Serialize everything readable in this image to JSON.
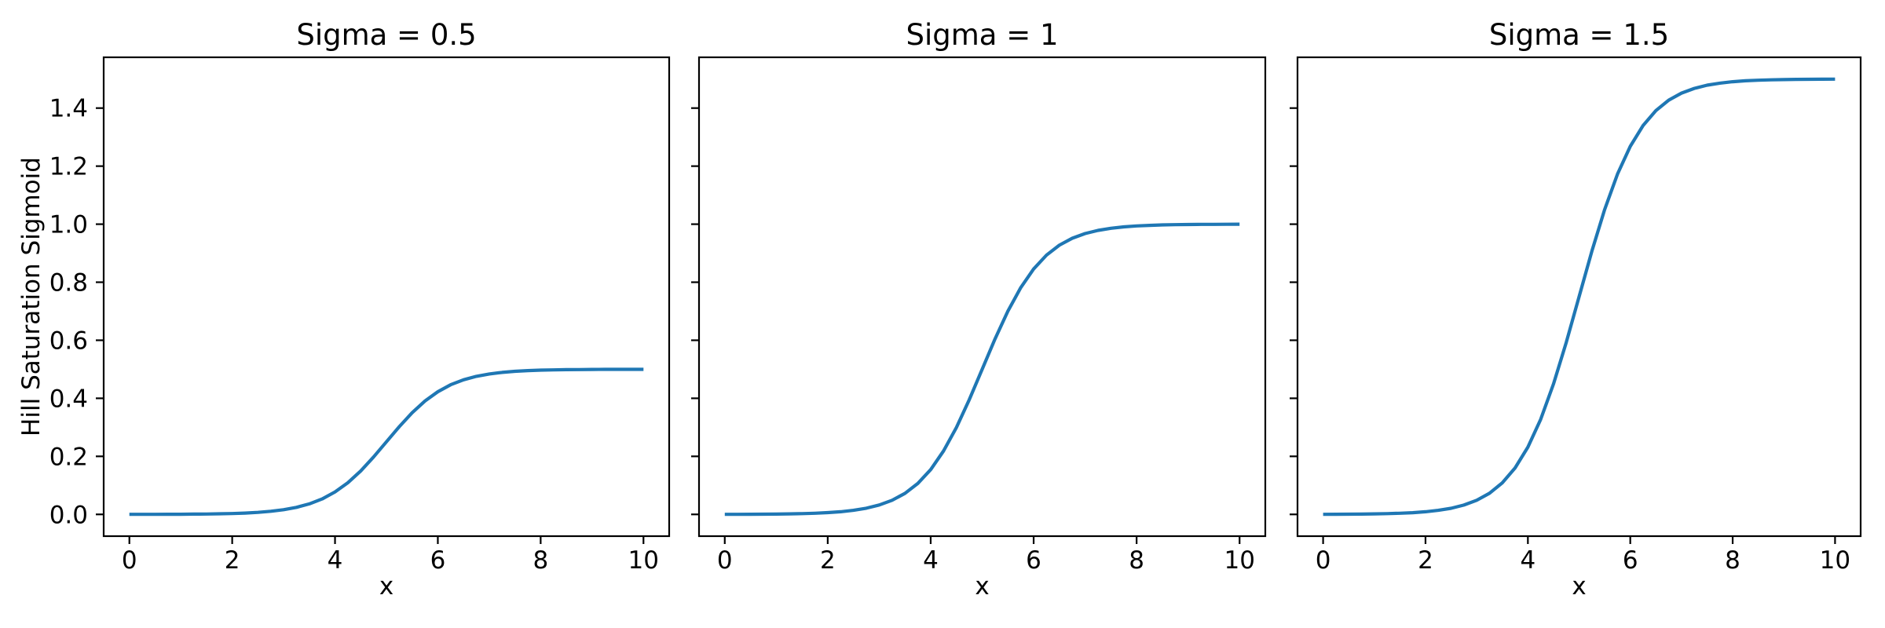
{
  "figure": {
    "background": "#ffffff",
    "line_color": "#1f77b4",
    "spine_color": "#000000",
    "text_color": "#000000"
  },
  "chart_data": [
    {
      "type": "line",
      "title": "Sigma = 0.5",
      "xlabel": "x",
      "ylabel": "Hill Saturation Sigmoid",
      "sigma": 0.5,
      "x_midpoint": 5,
      "xlim": [
        -0.5,
        10.5
      ],
      "ylim": [
        -0.075,
        1.575
      ],
      "xticks": [
        0,
        2,
        4,
        6,
        8,
        10
      ],
      "xtick_labels": [
        "0",
        "2",
        "4",
        "6",
        "8",
        "10"
      ],
      "yticks": [
        0,
        0.2,
        0.4,
        0.6,
        0.8,
        1.0,
        1.2,
        1.4
      ],
      "ytick_labels": [
        "0.0",
        "0.2",
        "0.4",
        "0.6",
        "0.8",
        "1.0",
        "1.2",
        "1.4"
      ],
      "show_ytick_labels": true,
      "grid": false,
      "legend": null,
      "x": [
        0,
        0.25,
        0.5,
        0.75,
        1,
        1.25,
        1.5,
        1.75,
        2,
        2.25,
        2.5,
        2.75,
        3,
        3.25,
        3.5,
        3.75,
        4,
        4.25,
        4.5,
        4.75,
        5,
        5.25,
        5.5,
        5.75,
        6,
        6.25,
        6.5,
        6.75,
        7,
        7.25,
        7.5,
        7.75,
        8,
        8.25,
        8.5,
        8.75,
        9,
        9.25,
        9.5,
        9.75,
        10
      ],
      "y": [
        0.0001,
        0.0002,
        0.0002,
        0.0004,
        0.0006,
        0.0009,
        0.0013,
        0.002,
        0.003,
        0.0046,
        0.007,
        0.0107,
        0.0161,
        0.0243,
        0.0362,
        0.0533,
        0.0772,
        0.1092,
        0.1497,
        0.1977,
        0.25,
        0.3023,
        0.3503,
        0.3908,
        0.4228,
        0.4467,
        0.4638,
        0.4757,
        0.4839,
        0.4893,
        0.4929,
        0.4954,
        0.497,
        0.498,
        0.4987,
        0.4991,
        0.4994,
        0.4997,
        0.4998,
        0.4998,
        0.4999
      ]
    },
    {
      "type": "line",
      "title": "Sigma = 1",
      "xlabel": "x",
      "ylabel": "",
      "sigma": 1,
      "x_midpoint": 5,
      "xlim": [
        -0.5,
        10.5
      ],
      "ylim": [
        -0.075,
        1.575
      ],
      "xticks": [
        0,
        2,
        4,
        6,
        8,
        10
      ],
      "xtick_labels": [
        "0",
        "2",
        "4",
        "6",
        "8",
        "10"
      ],
      "yticks": [
        0,
        0.2,
        0.4,
        0.6,
        0.8,
        1.0,
        1.2,
        1.4
      ],
      "ytick_labels": [],
      "show_ytick_labels": false,
      "grid": false,
      "legend": null,
      "x": [
        0,
        0.25,
        0.5,
        0.75,
        1,
        1.25,
        1.5,
        1.75,
        2,
        2.25,
        2.5,
        2.75,
        3,
        3.25,
        3.5,
        3.75,
        4,
        4.25,
        4.5,
        4.75,
        5,
        5.25,
        5.5,
        5.75,
        6,
        6.25,
        6.5,
        6.75,
        7,
        7.25,
        7.5,
        7.75,
        8,
        8.25,
        8.5,
        8.75,
        9,
        9.25,
        9.5,
        9.75,
        10
      ],
      "y": [
        0.0002,
        0.0003,
        0.0005,
        0.0007,
        0.0011,
        0.0017,
        0.0026,
        0.004,
        0.0061,
        0.0092,
        0.0141,
        0.0213,
        0.0323,
        0.0486,
        0.0724,
        0.1067,
        0.1545,
        0.2184,
        0.2994,
        0.3953,
        0.5,
        0.6047,
        0.7006,
        0.7816,
        0.8455,
        0.8933,
        0.9276,
        0.9514,
        0.9677,
        0.9786,
        0.9859,
        0.9908,
        0.9939,
        0.996,
        0.9974,
        0.9983,
        0.9989,
        0.9993,
        0.9995,
        0.9997,
        0.9998
      ]
    },
    {
      "type": "line",
      "title": "Sigma = 1.5",
      "xlabel": "x",
      "ylabel": "",
      "sigma": 1.5,
      "x_midpoint": 5,
      "xlim": [
        -0.5,
        10.5
      ],
      "ylim": [
        -0.075,
        1.575
      ],
      "xticks": [
        0,
        2,
        4,
        6,
        8,
        10
      ],
      "xtick_labels": [
        "0",
        "2",
        "4",
        "6",
        "8",
        "10"
      ],
      "yticks": [
        0,
        0.2,
        0.4,
        0.6,
        0.8,
        1.0,
        1.2,
        1.4
      ],
      "ytick_labels": [],
      "show_ytick_labels": false,
      "grid": false,
      "legend": null,
      "x": [
        0,
        0.25,
        0.5,
        0.75,
        1,
        1.25,
        1.5,
        1.75,
        2,
        2.25,
        2.5,
        2.75,
        3,
        3.25,
        3.5,
        3.75,
        4,
        4.25,
        4.5,
        4.75,
        5,
        5.25,
        5.5,
        5.75,
        6,
        6.25,
        6.5,
        6.75,
        7,
        7.25,
        7.5,
        7.75,
        8,
        8.25,
        8.5,
        8.75,
        9,
        9.25,
        9.5,
        9.75,
        10
      ],
      "y": [
        0.0003,
        0.0005,
        0.0007,
        0.0011,
        0.0017,
        0.0026,
        0.0039,
        0.006,
        0.0091,
        0.0139,
        0.0211,
        0.032,
        0.0485,
        0.0728,
        0.1086,
        0.16,
        0.2317,
        0.3276,
        0.4491,
        0.5929,
        0.75,
        0.9071,
        1.0509,
        1.1724,
        1.2683,
        1.34,
        1.3914,
        1.4272,
        1.4516,
        1.4679,
        1.4789,
        1.4861,
        1.4909,
        1.494,
        1.496,
        1.4974,
        1.4983,
        1.499,
        1.4993,
        1.4995,
        1.4997
      ]
    }
  ]
}
